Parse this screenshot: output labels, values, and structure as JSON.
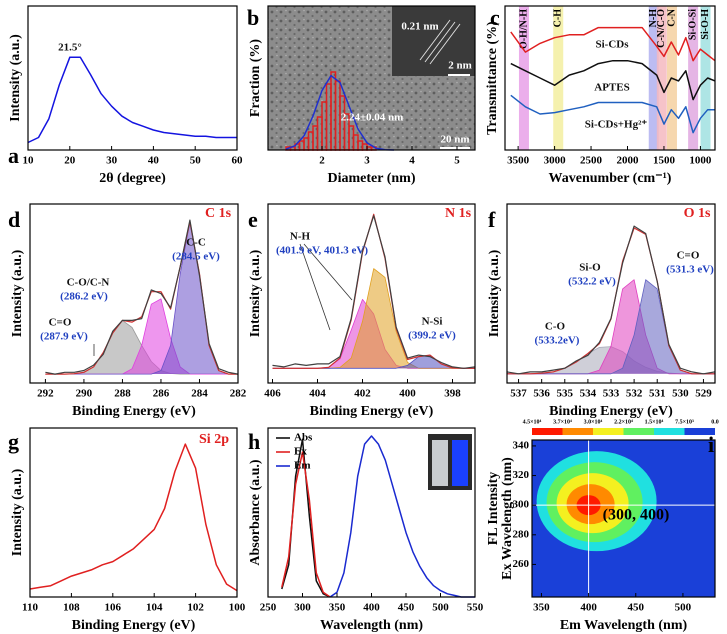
{
  "chart_data": [
    {
      "type": "line",
      "panel": "a",
      "xlabel": "2θ (degree)",
      "ylabel": "Intensity (a.u.)",
      "xlim": [
        10,
        60
      ],
      "xticks": [
        10,
        20,
        30,
        40,
        50,
        60
      ],
      "ylim": [
        0,
        1.15
      ],
      "x": [
        10,
        12.5,
        15,
        17.5,
        20,
        22.5,
        25,
        27.5,
        30,
        32.5,
        35,
        37.5,
        40,
        42.5,
        45,
        47.5,
        50,
        52.5,
        55,
        57.5,
        60
      ],
      "series": [
        {
          "color": "#1414e0",
          "values": [
            0.06,
            0.1,
            0.25,
            0.52,
            0.74,
            0.74,
            0.6,
            0.45,
            0.35,
            0.27,
            0.22,
            0.19,
            0.16,
            0.14,
            0.13,
            0.12,
            0.11,
            0.11,
            0.1,
            0.1,
            0.1
          ]
        }
      ],
      "annotations": [
        "21.5°"
      ]
    },
    {
      "type": "histogram",
      "panel": "b",
      "xlabel": "Diameter (nm)",
      "ylabel": "Fraction (%)",
      "xlim": [
        0.8,
        5.4
      ],
      "xticks": [
        2,
        3,
        4,
        5
      ],
      "ylim": [
        0,
        48
      ],
      "bins": [
        1.2,
        1.3,
        1.4,
        1.5,
        1.6,
        1.7,
        1.8,
        1.9,
        2.0,
        2.1,
        2.2,
        2.3,
        2.4,
        2.5,
        2.6,
        2.7,
        2.8,
        2.9,
        3.0,
        3.1,
        3.2
      ],
      "values": [
        1,
        1,
        2,
        3,
        4,
        6,
        8,
        11,
        16,
        22,
        26,
        23,
        18,
        12,
        8,
        5,
        3,
        2,
        1,
        1
      ],
      "color": "#e02020",
      "series": [
        {
          "color": "#2030d0",
          "x": [
            1.2,
            1.4,
            1.6,
            1.8,
            2.0,
            2.2,
            2.4,
            2.6,
            2.8,
            3.0,
            3.2,
            3.4,
            3.6
          ],
          "values": [
            0.3,
            1.4,
            4.7,
            11.3,
            19.8,
            24.8,
            22.5,
            14.7,
            7,
            2.4,
            0.6,
            0.1,
            0
          ]
        }
      ],
      "annotations": [
        "0.21 nm",
        "2 nm",
        "20 nm",
        "2.24±0.04 nm"
      ]
    },
    {
      "type": "line",
      "panel": "c",
      "xlabel": "Wavenumber (cm⁻¹)",
      "ylabel": "Transmittance (%)",
      "xlim": [
        3680,
        800
      ],
      "xticks": [
        3500,
        3000,
        2500,
        2000,
        1500,
        1000
      ],
      "ylim": [
        0,
        1
      ],
      "x": [
        3600,
        3400,
        3200,
        3000,
        2800,
        2600,
        2400,
        2200,
        2000,
        1800,
        1600,
        1500,
        1400,
        1300,
        1200,
        1100,
        1000,
        900,
        800
      ],
      "bands": [
        {
          "label": "O-H/N-H",
          "x": 3420,
          "color": "#e8a0e8"
        },
        {
          "label": "C-H",
          "x": 2950,
          "color": "#f3efa0"
        },
        {
          "label": "N-H",
          "x": 1640,
          "color": "#b0b0f0"
        },
        {
          "label": "C-N/C-O",
          "x": 1530,
          "color": "#f5b8c0"
        },
        {
          "label": "C-N",
          "x": 1390,
          "color": "#f5d0a0"
        },
        {
          "label": "Si-O-Si",
          "x": 1100,
          "color": "#e0a8e0"
        },
        {
          "label": "Si-O-H",
          "x": 930,
          "color": "#a0e0e0"
        }
      ],
      "series": [
        {
          "name": "Si-CDs",
          "color": "#e02020",
          "values": [
            0.82,
            0.68,
            0.74,
            0.78,
            0.8,
            0.8,
            0.85,
            0.85,
            0.85,
            0.85,
            0.72,
            0.65,
            0.75,
            0.66,
            0.78,
            0.62,
            0.7,
            0.66,
            0.62
          ]
        },
        {
          "name": "APTES",
          "color": "#101010",
          "values": [
            0.6,
            0.55,
            0.5,
            0.45,
            0.52,
            0.55,
            0.6,
            0.62,
            0.62,
            0.6,
            0.52,
            0.4,
            0.5,
            0.48,
            0.55,
            0.35,
            0.45,
            0.5,
            0.48
          ]
        },
        {
          "name": "Si-CDs+Hg²⁺",
          "color": "#2060c0",
          "values": [
            0.38,
            0.3,
            0.25,
            0.26,
            0.28,
            0.3,
            0.33,
            0.33,
            0.33,
            0.33,
            0.3,
            0.18,
            0.28,
            0.22,
            0.3,
            0.12,
            0.22,
            0.28,
            0.28
          ]
        }
      ]
    },
    {
      "type": "xps",
      "panel": "d",
      "label": "C 1s",
      "xlabel": "Binding Energy (eV)",
      "ylabel": "Intensity (a.u.)",
      "xlim": [
        292.8,
        282
      ],
      "xticks": [
        292,
        290,
        288,
        286,
        284,
        282
      ],
      "ylim": [
        -0.05,
        0.95
      ],
      "x": [
        292,
        291.5,
        291,
        290.5,
        290,
        289.5,
        289,
        288.5,
        288,
        287.5,
        287,
        286.5,
        286,
        285.5,
        285,
        284.5,
        284,
        283.5,
        283,
        282.5,
        282
      ],
      "series": [
        {
          "color": "#9a9a9a",
          "fill": true,
          "values": [
            0,
            0,
            0,
            0.002,
            0.01,
            0.04,
            0.12,
            0.23,
            0.3,
            0.26,
            0.16,
            0.07,
            0.02,
            0.003,
            0,
            0,
            0,
            0,
            0,
            0,
            0
          ]
        },
        {
          "color": "#e040e0",
          "fill": true,
          "values": [
            0,
            0,
            0,
            0,
            0,
            0,
            0,
            0,
            0,
            0.03,
            0.16,
            0.39,
            0.42,
            0.2,
            0.04,
            0,
            0,
            0,
            0,
            0,
            0
          ]
        },
        {
          "color": "#6a50c8",
          "fill": true,
          "values": [
            0,
            0,
            0,
            0,
            0,
            0,
            0,
            0,
            0,
            0,
            0,
            0,
            0.02,
            0.16,
            0.56,
            0.85,
            0.56,
            0.16,
            0.02,
            0,
            0
          ]
        },
        {
          "color": "#d03030",
          "values": [
            0,
            0,
            0,
            0.002,
            0.01,
            0.04,
            0.12,
            0.23,
            0.3,
            0.29,
            0.32,
            0.46,
            0.46,
            0.363,
            0.6,
            0.85,
            0.56,
            0.16,
            0.02,
            0,
            0
          ]
        },
        {
          "color": "#404040",
          "values": [
            0.01,
            0,
            0.01,
            0.01,
            0.02,
            0.05,
            0.11,
            0.24,
            0.3,
            0.3,
            0.31,
            0.47,
            0.45,
            0.37,
            0.6,
            0.86,
            0.55,
            0.17,
            0.03,
            0.01,
            0
          ]
        }
      ],
      "annotations": [
        "C-C",
        "(284.5 eV)",
        "C-O/C-N",
        "(286.2 eV)",
        "C=O",
        "(287.9 eV)"
      ]
    },
    {
      "type": "xps",
      "panel": "e",
      "label": "N 1s",
      "xlabel": "Binding Energy (eV)",
      "ylabel": "Intensity (a.u.)",
      "xlim": [
        406.2,
        397
      ],
      "xticks": [
        406,
        404,
        402,
        400,
        398
      ],
      "ylim": [
        -0.1,
        1.12
      ],
      "x": [
        406,
        405.5,
        405,
        404.5,
        404,
        403.5,
        403,
        402.5,
        402,
        401.5,
        401,
        400.5,
        400,
        399.5,
        399,
        398.5,
        398,
        397.5,
        397
      ],
      "series": [
        {
          "color": "#e040d0",
          "fill": true,
          "values": [
            0,
            0,
            0,
            0,
            0,
            0.007,
            0.065,
            0.26,
            0.47,
            0.37,
            0.13,
            0.02,
            0,
            0,
            0,
            0,
            0,
            0,
            0
          ]
        },
        {
          "color": "#e0a020",
          "fill": true,
          "values": [
            0,
            0,
            0,
            0,
            0,
            0,
            0.006,
            0.07,
            0.32,
            0.68,
            0.62,
            0.25,
            0.04,
            0,
            0,
            0,
            0,
            0,
            0
          ]
        },
        {
          "color": "#5050c0",
          "fill": true,
          "values": [
            0,
            0,
            0,
            0,
            0,
            0,
            0,
            0,
            0,
            0,
            0,
            0,
            0.02,
            0.08,
            0.09,
            0.03,
            0.003,
            0,
            0
          ]
        },
        {
          "color": "#d03030",
          "values": [
            0,
            0,
            0,
            0,
            0,
            0.007,
            0.071,
            0.33,
            0.79,
            1.05,
            0.75,
            0.27,
            0.06,
            0.08,
            0.09,
            0.03,
            0.003,
            0,
            0
          ]
        },
        {
          "color": "#404040",
          "values": [
            0.02,
            0.01,
            0.03,
            0.02,
            0.03,
            0.03,
            0.08,
            0.34,
            0.8,
            1.04,
            0.76,
            0.28,
            0.07,
            0.09,
            0.08,
            0.04,
            0.01,
            0,
            0.01
          ]
        }
      ],
      "annotations": [
        "N-H",
        "(401.9 eV, 401.3 eV)",
        "N-Si",
        "(399.2 eV)"
      ]
    },
    {
      "type": "xps",
      "panel": "f",
      "label": "O 1s",
      "xlabel": "Binding Energy (eV)",
      "ylabel": "Intensity (a.u.)",
      "xlim": [
        537.5,
        528.5
      ],
      "xticks": [
        537,
        536,
        535,
        534,
        533,
        532,
        531,
        530,
        529
      ],
      "ylim": [
        -0.05,
        0.92
      ],
      "x": [
        537.5,
        537,
        536.5,
        536,
        535.5,
        535,
        534.5,
        534,
        533.5,
        533,
        532.5,
        532,
        531.5,
        531,
        530.5,
        530,
        529.5,
        529,
        528.5
      ],
      "series": [
        {
          "color": "#a8a8b8",
          "fill": true,
          "values": [
            0,
            0,
            0,
            0.003,
            0.01,
            0.03,
            0.064,
            0.11,
            0.143,
            0.147,
            0.12,
            0.07,
            0.035,
            0.013,
            0.004,
            0,
            0,
            0,
            0
          ]
        },
        {
          "color": "#e040c0",
          "fill": true,
          "values": [
            0,
            0,
            0,
            0,
            0,
            0,
            0,
            0,
            0.02,
            0.15,
            0.46,
            0.51,
            0.21,
            0.03,
            0,
            0,
            0,
            0,
            0
          ]
        },
        {
          "color": "#6060c0",
          "fill": true,
          "values": [
            0,
            0,
            0,
            0,
            0,
            0,
            0,
            0,
            0,
            0,
            0.03,
            0.21,
            0.51,
            0.46,
            0.15,
            0.02,
            0,
            0,
            0
          ]
        },
        {
          "color": "#d03030",
          "values": [
            0,
            0,
            0,
            0.003,
            0.01,
            0.03,
            0.064,
            0.11,
            0.163,
            0.297,
            0.61,
            0.79,
            0.755,
            0.503,
            0.154,
            0.02,
            0,
            0,
            0
          ]
        },
        {
          "color": "#404040",
          "values": [
            0.01,
            0,
            0.01,
            0.01,
            0.02,
            0.03,
            0.07,
            0.1,
            0.17,
            0.3,
            0.6,
            0.8,
            0.76,
            0.5,
            0.16,
            0.03,
            0.01,
            0,
            0.01
          ]
        }
      ],
      "annotations": [
        "Si-O",
        "(532.2 eV)",
        "C=O",
        "(531.3 eV)",
        "C-O",
        "(533.2eV)"
      ]
    },
    {
      "type": "line",
      "panel": "g",
      "label": "Si 2p",
      "xlabel": "Binding Energy (eV)",
      "ylabel": "Intensity (a.u.)",
      "xlim": [
        110,
        100
      ],
      "xticks": [
        110,
        108,
        106,
        104,
        102,
        100
      ],
      "ylim": [
        0,
        1.05
      ],
      "x": [
        110,
        109.5,
        109,
        108.5,
        108,
        107.5,
        107,
        106.5,
        106,
        105.5,
        105,
        104.5,
        104,
        103.5,
        103,
        102.5,
        102,
        101.5,
        101,
        100.5,
        100
      ],
      "series": [
        {
          "color": "#e02020",
          "values": [
            0.05,
            0.06,
            0.07,
            0.1,
            0.13,
            0.15,
            0.17,
            0.2,
            0.22,
            0.26,
            0.3,
            0.36,
            0.42,
            0.55,
            0.78,
            0.95,
            0.8,
            0.45,
            0.2,
            0.08,
            0.04
          ]
        }
      ]
    },
    {
      "type": "line",
      "panel": "h",
      "xlabel": "Wavelength (nm)",
      "ylabel": "Absorbance (a.u.)",
      "xlim": [
        250,
        550
      ],
      "xticks": [
        250,
        300,
        350,
        400,
        450,
        500,
        550
      ],
      "ylim": [
        0,
        1.05
      ],
      "legend": "upper left",
      "x": [
        250,
        260,
        270,
        280,
        290,
        300,
        310,
        320,
        330,
        340,
        350,
        360,
        370,
        380,
        390,
        400,
        410,
        420,
        430,
        440,
        450,
        460,
        470,
        480,
        490,
        500,
        510,
        520,
        530,
        540,
        550
      ],
      "series": [
        {
          "name": "Abs",
          "color": "#101010",
          "values": [
            null,
            null,
            0.05,
            0.2,
            0.75,
            0.98,
            0.5,
            0.1,
            0.02,
            0,
            null,
            null,
            null,
            null,
            null,
            null,
            null,
            null,
            null,
            null,
            null,
            null,
            null,
            null,
            null,
            null,
            null,
            null,
            null,
            null,
            null
          ]
        },
        {
          "name": "Ex",
          "color": "#e02020",
          "values": [
            null,
            null,
            0.06,
            0.25,
            0.7,
            0.9,
            0.6,
            0.15,
            0.03,
            0,
            null,
            null,
            null,
            null,
            null,
            null,
            null,
            null,
            null,
            null,
            null,
            null,
            null,
            null,
            null,
            null,
            null,
            null,
            null,
            null,
            null
          ]
        },
        {
          "name": "Em",
          "color": "#1a2ad0",
          "values": [
            null,
            null,
            null,
            null,
            null,
            null,
            null,
            null,
            null,
            0,
            0.03,
            0.15,
            0.4,
            0.75,
            0.95,
            1.0,
            0.95,
            0.85,
            0.7,
            0.55,
            0.4,
            0.28,
            0.19,
            0.12,
            0.07,
            0.04,
            0.02,
            0.01,
            0,
            0,
            0
          ]
        }
      ]
    },
    {
      "type": "contour",
      "panel": "i",
      "xlabel": "Em Wavelength (nm)",
      "ylabel": "Ex Wavelength (nm)",
      "zlabel": "FL Intensity",
      "xlim": [
        340,
        534
      ],
      "xticks": [
        350,
        400,
        450,
        500
      ],
      "ylim": [
        238,
        344
      ],
      "yticks": [
        260,
        280,
        300,
        320,
        340
      ],
      "peak": [
        400,
        300
      ],
      "annotations": [
        "(300, 400)"
      ],
      "colorbar": {
        "ticks": [
          {
            "value": 45000,
            "label": "4.5×10⁴"
          },
          {
            "value": 37000,
            "label": "3.7×10⁴"
          },
          {
            "value": 30000,
            "label": "3.0×10⁴"
          },
          {
            "value": 22000,
            "label": "2.2×10⁴"
          },
          {
            "value": 15000,
            "label": "1.5×10⁴"
          },
          {
            "value": 7500,
            "label": "7.5×10³"
          },
          {
            "value": 0,
            "label": "0.0"
          }
        ],
        "colors": [
          "#ff1a00",
          "#ff8a00",
          "#f4f020",
          "#60f060",
          "#20e0e0",
          "#1a40d8"
        ]
      }
    }
  ]
}
